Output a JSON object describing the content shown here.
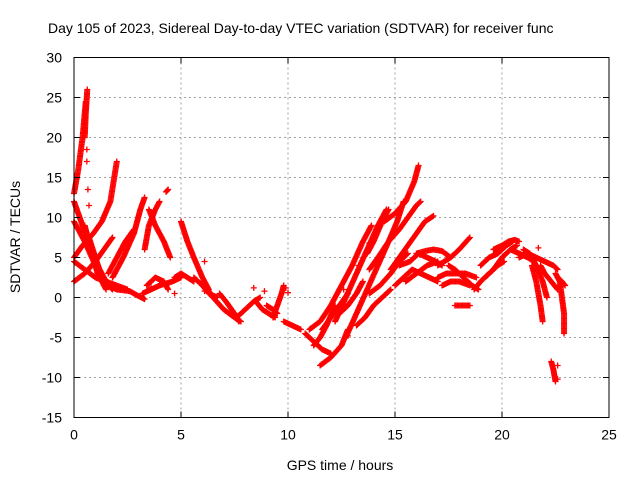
{
  "chart_data": {
    "type": "scatter",
    "title": "Day 105 of 2023, Sidereal Day-to-day VTEC variation (SDTVAR) for receiver func",
    "xlabel": "GPS time / hours",
    "ylabel": "SDTVAR / TECUs",
    "xlim": [
      0,
      25
    ],
    "ylim": [
      -15,
      30
    ],
    "xticks": [
      0,
      5,
      10,
      15,
      20,
      25
    ],
    "yticks": [
      -15,
      -10,
      -5,
      0,
      5,
      10,
      15,
      20,
      25,
      30
    ],
    "grid": true,
    "marker": "+",
    "color": "#ff0000",
    "tracks": [
      [
        [
          0.5,
          20.0
        ],
        [
          0.55,
          23.0
        ],
        [
          0.62,
          26.0
        ]
      ],
      [
        [
          0.0,
          13.0
        ],
        [
          0.2,
          16.0
        ],
        [
          0.4,
          20.0
        ],
        [
          0.55,
          24.5
        ]
      ],
      [
        [
          0.0,
          12.0
        ],
        [
          0.4,
          9.0
        ],
        [
          0.8,
          6.0
        ],
        [
          1.2,
          3.5
        ],
        [
          1.6,
          1.5
        ],
        [
          2.0,
          1.0
        ]
      ],
      [
        [
          0.0,
          9.5
        ],
        [
          0.5,
          7.0
        ],
        [
          1.0,
          4.0
        ],
        [
          1.4,
          2.0
        ],
        [
          1.8,
          1.0
        ]
      ],
      [
        [
          0.0,
          5.0
        ],
        [
          0.4,
          6.5
        ],
        [
          0.9,
          8.0
        ],
        [
          1.3,
          9.5
        ],
        [
          1.7,
          12.0
        ],
        [
          2.0,
          17.0
        ]
      ],
      [
        [
          0.0,
          4.5
        ],
        [
          0.5,
          3.5
        ],
        [
          1.0,
          2.5
        ],
        [
          1.5,
          2.0
        ],
        [
          2.0,
          1.5
        ],
        [
          2.5,
          1.0
        ]
      ],
      [
        [
          0.0,
          2.0
        ],
        [
          0.5,
          3.0
        ],
        [
          1.0,
          4.5
        ],
        [
          1.4,
          6.0
        ],
        [
          1.8,
          7.5
        ]
      ],
      [
        [
          0.5,
          9.0
        ],
        [
          0.8,
          6.0
        ],
        [
          1.1,
          3.0
        ],
        [
          1.5,
          1.0
        ]
      ],
      [
        [
          0.7,
          7.5
        ],
        [
          1.0,
          5.0
        ],
        [
          1.3,
          2.5
        ],
        [
          1.8,
          1.2
        ]
      ],
      [
        [
          1.8,
          2.5
        ],
        [
          2.3,
          5.0
        ],
        [
          2.8,
          8.0
        ],
        [
          3.1,
          11.0
        ],
        [
          3.3,
          12.5
        ]
      ],
      [
        [
          1.6,
          3.0
        ],
        [
          2.0,
          5.0
        ],
        [
          2.4,
          7.0
        ],
        [
          2.8,
          8.5
        ]
      ],
      [
        [
          2.0,
          1.0
        ],
        [
          2.6,
          0.8
        ],
        [
          3.0,
          0.2
        ],
        [
          3.3,
          -0.2
        ]
      ],
      [
        [
          3.5,
          11.0
        ],
        [
          3.8,
          9.0
        ],
        [
          4.2,
          7.0
        ],
        [
          4.5,
          5.0
        ]
      ],
      [
        [
          3.3,
          6.0
        ],
        [
          3.5,
          9.0
        ],
        [
          3.8,
          11.0
        ],
        [
          4.0,
          12.0
        ]
      ],
      [
        [
          3.4,
          1.5
        ],
        [
          3.8,
          2.5
        ],
        [
          4.2,
          2.0
        ],
        [
          4.4,
          1.0
        ]
      ],
      [
        [
          3.2,
          0.5
        ],
        [
          3.6,
          1.0
        ],
        [
          4.0,
          1.5
        ],
        [
          4.6,
          2.0
        ],
        [
          5.0,
          2.5
        ]
      ],
      [
        [
          4.3,
          13.2
        ],
        [
          4.4,
          13.5
        ]
      ],
      [
        [
          4.7,
          2.5
        ],
        [
          5.0,
          3.0
        ],
        [
          5.3,
          2.5
        ],
        [
          5.6,
          2.0
        ]
      ],
      [
        [
          5.0,
          9.5
        ],
        [
          5.3,
          7.0
        ],
        [
          5.6,
          5.0
        ],
        [
          6.0,
          2.5
        ],
        [
          6.3,
          1.0
        ]
      ],
      [
        [
          5.6,
          2.5
        ],
        [
          6.0,
          1.5
        ],
        [
          6.3,
          0.5
        ],
        [
          6.7,
          0.0
        ]
      ],
      [
        [
          6.0,
          2.0
        ],
        [
          6.5,
          0.0
        ],
        [
          7.0,
          -1.5
        ],
        [
          7.5,
          -2.5
        ],
        [
          7.8,
          -3.0
        ]
      ],
      [
        [
          6.8,
          0.5
        ],
        [
          7.1,
          -0.5
        ],
        [
          7.5,
          -2.0
        ],
        [
          7.7,
          -3.0
        ]
      ],
      [
        [
          7.6,
          -2.5
        ],
        [
          8.0,
          -1.5
        ],
        [
          8.4,
          -0.5
        ],
        [
          8.7,
          0.0
        ]
      ],
      [
        [
          8.5,
          -0.5
        ],
        [
          8.8,
          -1.5
        ],
        [
          9.1,
          -2.0
        ],
        [
          9.4,
          -2.5
        ]
      ],
      [
        [
          9.0,
          -1.0
        ],
        [
          9.3,
          -1.5
        ],
        [
          9.5,
          -2.0
        ]
      ],
      [
        [
          9.3,
          -2.5
        ],
        [
          9.5,
          -1.0
        ],
        [
          9.7,
          0.5
        ],
        [
          9.8,
          1.5
        ]
      ],
      [
        [
          9.8,
          -3.0
        ],
        [
          10.2,
          -3.5
        ],
        [
          10.6,
          -4.0
        ]
      ],
      [
        [
          10.8,
          -4.5
        ],
        [
          11.2,
          -5.5
        ],
        [
          11.6,
          -6.5
        ],
        [
          12.0,
          -7.0
        ]
      ],
      [
        [
          11.0,
          -4.0
        ],
        [
          11.5,
          -3.0
        ],
        [
          12.0,
          -1.0
        ],
        [
          12.5,
          1.5
        ],
        [
          13.0,
          4.0
        ],
        [
          13.5,
          7.0
        ],
        [
          13.9,
          9.0
        ]
      ],
      [
        [
          11.2,
          -6.0
        ],
        [
          11.5,
          -5.0
        ],
        [
          11.8,
          -3.5
        ],
        [
          12.2,
          -1.0
        ]
      ],
      [
        [
          11.6,
          -4.0
        ],
        [
          12.0,
          -2.5
        ],
        [
          12.4,
          -1.0
        ],
        [
          12.8,
          0.5
        ]
      ],
      [
        [
          11.5,
          -8.5
        ],
        [
          12.0,
          -7.5
        ],
        [
          12.5,
          -6.0
        ],
        [
          12.8,
          -4.0
        ]
      ],
      [
        [
          12.2,
          -3.0
        ],
        [
          12.7,
          0.0
        ],
        [
          13.2,
          3.0
        ],
        [
          13.7,
          6.0
        ],
        [
          14.2,
          9.0
        ],
        [
          14.6,
          11.0
        ]
      ],
      [
        [
          12.4,
          -2.0
        ],
        [
          12.8,
          -1.0
        ],
        [
          13.2,
          0.5
        ],
        [
          13.5,
          2.0
        ]
      ],
      [
        [
          12.7,
          -5.0
        ],
        [
          13.2,
          -2.0
        ],
        [
          13.7,
          1.0
        ],
        [
          14.2,
          4.0
        ],
        [
          14.7,
          7.0
        ],
        [
          15.1,
          9.5
        ],
        [
          15.4,
          12.0
        ]
      ],
      [
        [
          13.2,
          -3.5
        ],
        [
          13.6,
          -2.5
        ],
        [
          14.0,
          -1.0
        ],
        [
          14.4,
          0.0
        ],
        [
          14.8,
          1.0
        ]
      ],
      [
        [
          13.8,
          0.5
        ],
        [
          14.3,
          1.5
        ],
        [
          14.8,
          3.0
        ],
        [
          15.2,
          4.5
        ],
        [
          15.6,
          5.5
        ]
      ],
      [
        [
          13.8,
          3.5
        ],
        [
          14.2,
          5.0
        ],
        [
          14.7,
          7.0
        ],
        [
          15.2,
          8.5
        ],
        [
          15.6,
          10.0
        ],
        [
          16.0,
          11.5
        ],
        [
          16.2,
          12.0
        ]
      ],
      [
        [
          13.7,
          5.5
        ],
        [
          14.0,
          7.0
        ],
        [
          14.4,
          9.5
        ],
        [
          14.7,
          11.0
        ]
      ],
      [
        [
          14.5,
          9.5
        ],
        [
          15.0,
          10.5
        ],
        [
          15.5,
          12.0
        ],
        [
          15.9,
          14.5
        ],
        [
          16.1,
          16.5
        ]
      ],
      [
        [
          14.8,
          3.5
        ],
        [
          15.2,
          5.0
        ],
        [
          15.6,
          6.5
        ],
        [
          16.0,
          8.0
        ],
        [
          16.4,
          9.5
        ],
        [
          16.8,
          10.2
        ]
      ],
      [
        [
          15.0,
          1.5
        ],
        [
          15.4,
          2.5
        ],
        [
          15.8,
          3.5
        ],
        [
          16.2,
          3.0
        ],
        [
          16.6,
          2.5
        ],
        [
          17.0,
          2.0
        ]
      ],
      [
        [
          15.2,
          4.0
        ],
        [
          15.7,
          4.5
        ],
        [
          16.1,
          5.5
        ],
        [
          16.5,
          5.0
        ],
        [
          16.9,
          4.5
        ],
        [
          17.2,
          4.0
        ]
      ],
      [
        [
          15.5,
          2.0
        ],
        [
          16.0,
          3.0
        ],
        [
          16.5,
          4.0
        ],
        [
          17.0,
          4.5
        ]
      ],
      [
        [
          16.0,
          5.5
        ],
        [
          16.4,
          5.8
        ],
        [
          16.8,
          6.0
        ],
        [
          17.2,
          5.8
        ],
        [
          17.6,
          5.0
        ]
      ],
      [
        [
          17.0,
          4.0
        ],
        [
          17.3,
          4.5
        ],
        [
          17.6,
          5.0
        ],
        [
          17.8,
          5.5
        ],
        [
          18.0,
          6.0
        ],
        [
          18.5,
          7.5
        ]
      ],
      [
        [
          17.0,
          2.5
        ],
        [
          17.4,
          3.0
        ],
        [
          17.8,
          3.0
        ],
        [
          18.3,
          3.0
        ],
        [
          18.8,
          2.5
        ]
      ],
      [
        [
          17.2,
          1.5
        ],
        [
          17.6,
          2.0
        ],
        [
          18.0,
          2.0
        ],
        [
          18.5,
          1.5
        ]
      ],
      [
        [
          17.5,
          4.0
        ],
        [
          17.8,
          3.5
        ],
        [
          18.2,
          2.5
        ],
        [
          18.6,
          1.5
        ],
        [
          18.9,
          1.0
        ]
      ],
      [
        [
          17.8,
          -1.0
        ],
        [
          18.1,
          -1.0
        ],
        [
          18.5,
          -1.0
        ]
      ],
      [
        [
          18.7,
          1.0
        ],
        [
          19.0,
          2.0
        ],
        [
          19.4,
          3.0
        ],
        [
          19.8,
          4.0
        ],
        [
          20.1,
          4.5
        ]
      ],
      [
        [
          19.0,
          4.0
        ],
        [
          19.4,
          5.0
        ],
        [
          19.8,
          5.5
        ],
        [
          20.2,
          6.5
        ],
        [
          20.5,
          7.0
        ]
      ],
      [
        [
          19.6,
          6.0
        ],
        [
          20.0,
          6.5
        ],
        [
          20.3,
          7.0
        ],
        [
          20.6,
          7.2
        ],
        [
          20.8,
          7.0
        ]
      ],
      [
        [
          19.2,
          2.5
        ],
        [
          19.6,
          3.5
        ],
        [
          20.0,
          5.0
        ],
        [
          20.4,
          6.0
        ],
        [
          20.7,
          6.5
        ]
      ],
      [
        [
          20.4,
          6.0
        ],
        [
          20.8,
          5.5
        ],
        [
          21.2,
          5.0
        ],
        [
          21.5,
          4.5
        ]
      ],
      [
        [
          20.8,
          5.0
        ],
        [
          21.2,
          5.5
        ],
        [
          21.6,
          5.0
        ],
        [
          22.0,
          4.5
        ],
        [
          22.4,
          4.0
        ],
        [
          22.6,
          3.5
        ]
      ],
      [
        [
          21.0,
          6.0
        ],
        [
          21.3,
          5.5
        ],
        [
          21.6,
          4.0
        ],
        [
          21.9,
          2.0
        ],
        [
          22.1,
          0.0
        ]
      ],
      [
        [
          21.4,
          4.0
        ],
        [
          21.6,
          2.0
        ],
        [
          21.8,
          -1.0
        ],
        [
          21.9,
          -3.0
        ]
      ],
      [
        [
          21.8,
          4.0
        ],
        [
          22.0,
          3.0
        ],
        [
          22.3,
          2.0
        ],
        [
          22.6,
          1.0
        ]
      ],
      [
        [
          22.3,
          -8.0
        ],
        [
          22.4,
          -9.0
        ],
        [
          22.5,
          -10.5
        ]
      ],
      [
        [
          22.5,
          3.0
        ],
        [
          22.7,
          2.0
        ],
        [
          22.8,
          0.0
        ],
        [
          22.9,
          -2.0
        ],
        [
          22.9,
          -4.5
        ]
      ],
      [
        [
          22.6,
          2.5
        ],
        [
          22.8,
          2.0
        ],
        [
          22.95,
          1.5
        ]
      ]
    ],
    "isolated_points": [
      [
        0.6,
        18.5
      ],
      [
        0.6,
        17.0
      ],
      [
        0.65,
        13.5
      ],
      [
        0.7,
        11.5
      ],
      [
        3.6,
        1.3
      ],
      [
        4.7,
        0.5
      ],
      [
        6.1,
        4.5
      ],
      [
        6.1,
        0.8
      ],
      [
        8.4,
        1.2
      ],
      [
        8.9,
        0.8
      ],
      [
        9.9,
        1.2
      ],
      [
        10.0,
        0.6
      ],
      [
        12.6,
        1.0
      ],
      [
        13.3,
        4.0
      ],
      [
        13.8,
        6.8
      ],
      [
        12.8,
        -4.8
      ],
      [
        21.7,
        6.2
      ],
      [
        22.6,
        -8.5
      ],
      [
        22.6,
        -10.2
      ]
    ]
  }
}
